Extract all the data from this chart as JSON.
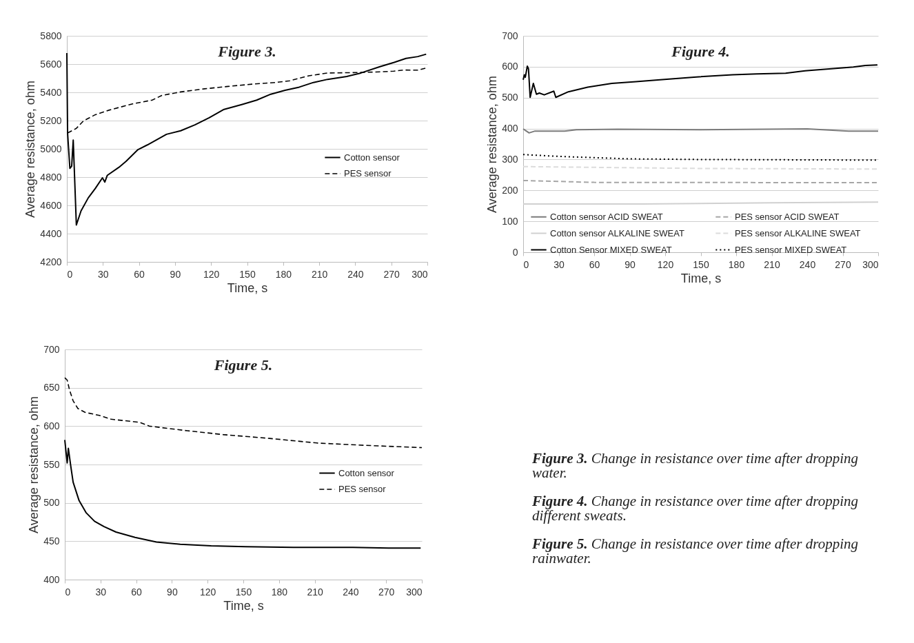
{
  "chart_data": [
    {
      "type": "line",
      "title": "Figure 3.",
      "xlabel": "Time, s",
      "ylabel": "Average resistance, ohm",
      "xlim": [
        0,
        300
      ],
      "xticks": [
        0,
        30,
        60,
        90,
        120,
        150,
        180,
        210,
        240,
        270,
        300
      ],
      "ylim": [
        4200,
        5800
      ],
      "yticks": [
        4200,
        4400,
        4600,
        4800,
        5000,
        5200,
        5400,
        5600,
        5800
      ],
      "grid": "y",
      "legend": "right",
      "series": [
        {
          "name": "Cotton sensor",
          "color": "#000000",
          "line_style": "solid",
          "x": [
            0,
            0.6,
            2.5,
            4,
            5.3,
            7.9,
            11.8,
            17.8,
            23.7,
            29.6,
            31.6,
            33.6,
            43.4,
            49.3,
            59.2,
            67,
            82.9,
            94.7,
            106.6,
            118.4,
            130.3,
            146,
            158,
            169.7,
            181.6,
            193.4,
            205.2,
            217,
            232.9,
            244.7,
            260.5,
            272.4,
            282.2,
            292,
            299
          ],
          "values": [
            5678,
            5112,
            4862,
            4878,
            5062,
            4461,
            4561,
            4653,
            4720,
            4795,
            4765,
            4812,
            4870,
            4912,
            4995,
            5028,
            5103,
            5128,
            5170,
            5220,
            5278,
            5315,
            5345,
            5387,
            5415,
            5437,
            5470,
            5492,
            5512,
            5537,
            5582,
            5612,
            5640,
            5653,
            5670
          ]
        },
        {
          "name": "PES sensor",
          "color": "#000000",
          "line_style": "dashed",
          "x": [
            0.6,
            7.9,
            13.8,
            23.7,
            35.5,
            55.3,
            71,
            79,
            94.7,
            114.5,
            134.2,
            154,
            173.7,
            185.5,
            201.3,
            217,
            240.8,
            260.5,
            272,
            280,
            292,
            300
          ],
          "values": [
            5112,
            5145,
            5198,
            5242,
            5275,
            5320,
            5345,
            5378,
            5403,
            5425,
            5442,
            5458,
            5470,
            5482,
            5517,
            5537,
            5540,
            5545,
            5550,
            5558,
            5557,
            5575
          ]
        }
      ]
    },
    {
      "type": "line",
      "title": "Figure 4.",
      "xlabel": "Time, s",
      "ylabel": "Average resistance, ohm",
      "xlim": [
        0,
        300
      ],
      "xticks": [
        0,
        30,
        60,
        90,
        120,
        150,
        180,
        210,
        240,
        270,
        300
      ],
      "ylim": [
        0,
        700
      ],
      "yticks": [
        0,
        100,
        200,
        300,
        400,
        500,
        600,
        700
      ],
      "grid": "y",
      "legend": "bottom",
      "series": [
        {
          "name": "Cotton sensor ACID SWEAT",
          "color": "#7a7a7a",
          "line_style": "solid",
          "x": [
            0,
            5,
            10,
            35,
            45,
            80,
            150,
            240,
            275,
            300
          ],
          "values": [
            399,
            386,
            392,
            392,
            396,
            398,
            396,
            399,
            392,
            392
          ]
        },
        {
          "name": "Cotton sensor ALKALINE SWEAT",
          "color": "#d0d0d0",
          "line_style": "solid",
          "x": [
            0,
            100,
            210,
            300
          ],
          "values": [
            156,
            156,
            160,
            162
          ]
        },
        {
          "name": "Cotton Sensor MIXED SWEAT",
          "color": "#000000",
          "line_style": "solid",
          "x": [
            0,
            1,
            1.8,
            3.5,
            4.5,
            5.9,
            8.6,
            11.2,
            13.7,
            17.8,
            25.9,
            27.6,
            38.2,
            54.5,
            74.9,
            95.3,
            115.7,
            146.3,
            176.9,
            197.3,
            221.8,
            238.2,
            258.6,
            279,
            289.2,
            299.4
          ],
          "values": [
            558,
            574,
            566,
            602,
            593,
            501,
            546,
            511,
            515,
            509,
            521,
            501,
            519,
            534,
            546,
            552,
            558,
            567,
            574,
            577,
            579,
            587,
            593,
            599,
            604,
            606
          ]
        },
        {
          "name": "PES sensor ACID SWEAT",
          "color": "#a6a6a6",
          "line_style": "dashed",
          "x": [
            0,
            60,
            300
          ],
          "values": [
            232,
            226,
            225
          ]
        },
        {
          "name": "PES sensor ALKALINE SWEAT",
          "color": "#dcdcdc",
          "line_style": "dashed",
          "x": [
            0,
            150,
            300
          ],
          "values": [
            277,
            271,
            269
          ]
        },
        {
          "name": "PES sensor MIXED SWEAT",
          "color": "#000000",
          "line_style": "dotted",
          "x": [
            0,
            30,
            60,
            90,
            150,
            300
          ],
          "values": [
            316,
            310,
            306,
            302,
            300,
            298
          ]
        }
      ]
    },
    {
      "type": "line",
      "title": "Figure 5.",
      "xlabel": "Time, s",
      "ylabel": "Average resistance, ohm",
      "xlim": [
        0,
        300
      ],
      "xticks": [
        0,
        30,
        60,
        90,
        120,
        150,
        180,
        210,
        240,
        270,
        300
      ],
      "ylim": [
        400,
        700
      ],
      "yticks": [
        400,
        450,
        500,
        550,
        600,
        650,
        700
      ],
      "grid": "y",
      "legend": "right",
      "series": [
        {
          "name": "Cotton sensor",
          "color": "#000000",
          "line_style": "solid",
          "x": [
            0,
            2,
            3,
            5,
            7,
            12,
            18,
            25,
            33,
            43,
            59,
            77,
            97,
            123,
            152,
            192,
            242,
            272,
            299
          ],
          "values": [
            582,
            552,
            571,
            548,
            527,
            503,
            487,
            476,
            469,
            462,
            455,
            449,
            446,
            444,
            443,
            442,
            442,
            441,
            441
          ]
        },
        {
          "name": "PES sensor",
          "color": "#000000",
          "line_style": "dashed",
          "x": [
            0,
            2,
            4,
            7,
            11,
            17,
            29,
            39,
            63,
            71,
            103,
            133,
            172,
            212,
            252,
            300
          ],
          "values": [
            663,
            660,
            647,
            633,
            623,
            618,
            614,
            609,
            605,
            600,
            594,
            589,
            584,
            578,
            575,
            572
          ]
        }
      ]
    },
    {
      "type": "other",
      "annotations": [
        "Figure 3. Change in resistance over time after dropping water.",
        "Figure 4. Change in resistance over time after dropping different sweats.",
        "Figure 5. Change in resistance over time after dropping rainwater."
      ]
    }
  ]
}
